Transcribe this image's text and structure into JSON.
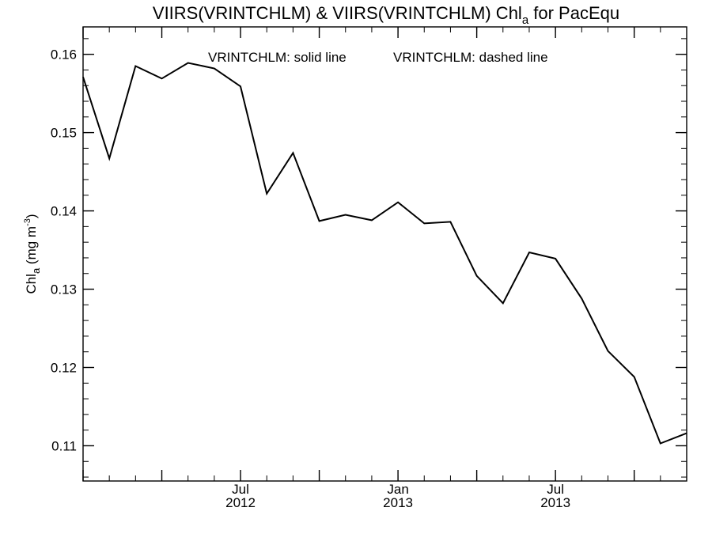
{
  "chart_data": {
    "type": "line",
    "title": {
      "prefix": "VIIRS(VRINTCHLM) & VIIRS(VRINTCHLM)  Chl",
      "subscript": "a",
      "suffix": " for PacEqu"
    },
    "annotation": {
      "solid": "VRINTCHLM: solid line",
      "dashed": "VRINTCHLM: dashed line"
    },
    "ylabel": {
      "prefix": "Chl",
      "subscript": "a",
      "middle": " (mg m",
      "superscript": "-3",
      "suffix": ")"
    },
    "ylim": [
      0.1055,
      0.1635
    ],
    "yticks": [
      0.11,
      0.12,
      0.13,
      0.14,
      0.15,
      0.16
    ],
    "ytick_labels": [
      "0.11",
      "0.12",
      "0.13",
      "0.14",
      "0.15",
      "0.16"
    ],
    "xlim": [
      "2012-01-01",
      "2013-12-01"
    ],
    "xticks": [
      {
        "date": "2012-07-01",
        "month": "Jul",
        "year": "2012"
      },
      {
        "date": "2013-01-01",
        "month": "Jan",
        "year": "2013"
      },
      {
        "date": "2013-07-01",
        "month": "Jul",
        "year": "2013"
      }
    ],
    "grid": false,
    "series": [
      {
        "style": "solid",
        "color": "#000000",
        "points": [
          {
            "x": "2012-01-01",
            "y": 0.1571
          },
          {
            "x": "2012-02-01",
            "y": 0.1467
          },
          {
            "x": "2012-03-01",
            "y": 0.1585
          },
          {
            "x": "2012-04-01",
            "y": 0.1569
          },
          {
            "x": "2012-05-01",
            "y": 0.1589
          },
          {
            "x": "2012-06-01",
            "y": 0.1582
          },
          {
            "x": "2012-07-01",
            "y": 0.1559
          },
          {
            "x": "2012-08-01",
            "y": 0.1422
          },
          {
            "x": "2012-09-01",
            "y": 0.1474
          },
          {
            "x": "2012-10-01",
            "y": 0.1387
          },
          {
            "x": "2012-11-01",
            "y": 0.1395
          },
          {
            "x": "2012-12-01",
            "y": 0.1388
          },
          {
            "x": "2013-01-01",
            "y": 0.1411
          },
          {
            "x": "2013-02-01",
            "y": 0.1384
          },
          {
            "x": "2013-03-01",
            "y": 0.1386
          },
          {
            "x": "2013-04-01",
            "y": 0.1317
          },
          {
            "x": "2013-05-01",
            "y": 0.1282
          },
          {
            "x": "2013-06-01",
            "y": 0.1347
          },
          {
            "x": "2013-07-01",
            "y": 0.1339
          },
          {
            "x": "2013-08-01",
            "y": 0.1288
          },
          {
            "x": "2013-09-01",
            "y": 0.1221
          },
          {
            "x": "2013-10-01",
            "y": 0.1188
          },
          {
            "x": "2013-11-01",
            "y": 0.1103
          },
          {
            "x": "2013-12-01",
            "y": 0.1116
          }
        ]
      }
    ]
  }
}
